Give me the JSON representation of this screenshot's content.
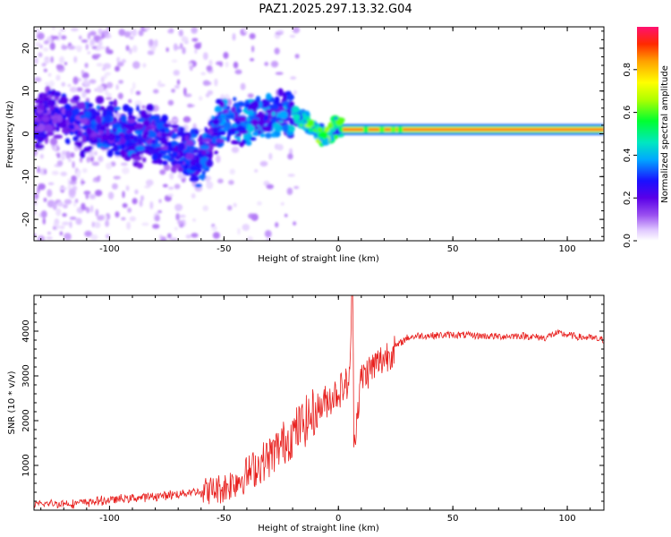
{
  "title": "PAZ1.2025.297.13.32.G04",
  "colors": {
    "snr_line": "#e8201e",
    "axis": "#000000",
    "background": "#ffffff",
    "colormap": [
      "#ffffff",
      "#d8c8f8",
      "#9860f0",
      "#6a00f0",
      "#2020ff",
      "#00a0ff",
      "#00e0c0",
      "#00ff40",
      "#b0ff00",
      "#ffff00",
      "#ffa000",
      "#ff3000",
      "#ff1060"
    ]
  },
  "chart_data": [
    {
      "type": "heatmap",
      "name": "spectrogram",
      "xlabel": "Height of straight line (km)",
      "ylabel": "Frequency (Hz)",
      "xlim": [
        -133,
        116
      ],
      "ylim": [
        -25,
        25
      ],
      "xticks": [
        -100,
        -50,
        0,
        50,
        100
      ],
      "yticks": [
        -20,
        -10,
        0,
        10,
        20
      ],
      "xtick_labels": [
        "-100",
        "-50",
        "0",
        "50",
        "100"
      ],
      "ytick_labels": [
        "-20",
        "-10",
        "0",
        "10",
        "20"
      ],
      "colorbar": {
        "label": "Normalized spectral amplitude",
        "range": [
          0,
          1
        ],
        "ticks": [
          0.0,
          0.2,
          0.4,
          0.6,
          0.8
        ],
        "tick_labels": [
          "0.0",
          "0.2",
          "0.4",
          "0.6",
          "0.8"
        ]
      },
      "ridge": {
        "description_x": [
          -133,
          -120,
          -110,
          -100,
          -90,
          -80,
          -70,
          -60,
          -50,
          -40,
          -30,
          -20,
          -15,
          -10,
          -5,
          0,
          5,
          10,
          20,
          30,
          50,
          80,
          100,
          116
        ],
        "center_freq": [
          3,
          4,
          1,
          2,
          -1,
          0,
          -4,
          -6,
          4,
          2,
          4,
          5,
          3,
          1,
          -1,
          2,
          1,
          1,
          1,
          1,
          1,
          1,
          1,
          1
        ],
        "amplitude": [
          0.22,
          0.25,
          0.28,
          0.3,
          0.3,
          0.3,
          0.28,
          0.3,
          0.33,
          0.35,
          0.34,
          0.36,
          0.55,
          0.6,
          0.55,
          0.5,
          0.9,
          0.95,
          0.97,
          1.0,
          1.0,
          1.0,
          1.0,
          0.98
        ]
      }
    },
    {
      "type": "line",
      "name": "snr",
      "xlabel": "Height of straight line (km)",
      "ylabel": "SNR (10 * v/v)",
      "xlim": [
        -133,
        116
      ],
      "ylim": [
        0,
        4800
      ],
      "xticks": [
        -100,
        -50,
        0,
        50,
        100
      ],
      "yticks": [
        1000,
        2000,
        3000,
        4000
      ],
      "xtick_labels": [
        "-100",
        "-50",
        "0",
        "50",
        "100"
      ],
      "ytick_labels": [
        "1000",
        "2000",
        "3000",
        "4000"
      ],
      "series": [
        {
          "name": "SNR",
          "x": [
            -133,
            -125,
            -115,
            -105,
            -95,
            -85,
            -75,
            -65,
            -55,
            -50,
            -45,
            -40,
            -35,
            -30,
            -25,
            -20,
            -15,
            -10,
            -5,
            0,
            5,
            6,
            7,
            10,
            15,
            20,
            25,
            30,
            35,
            40,
            50,
            60,
            70,
            80,
            90,
            95,
            100,
            105,
            110,
            116
          ],
          "y": [
            120,
            150,
            150,
            200,
            250,
            290,
            330,
            400,
            450,
            500,
            650,
            800,
            1000,
            1200,
            1450,
            1700,
            1950,
            2200,
            2450,
            2650,
            2900,
            4800,
            1600,
            2950,
            3200,
            3400,
            3650,
            3850,
            3900,
            3900,
            3920,
            3900,
            3880,
            3900,
            3850,
            3950,
            3920,
            3870,
            3850,
            3800
          ]
        }
      ]
    }
  ]
}
